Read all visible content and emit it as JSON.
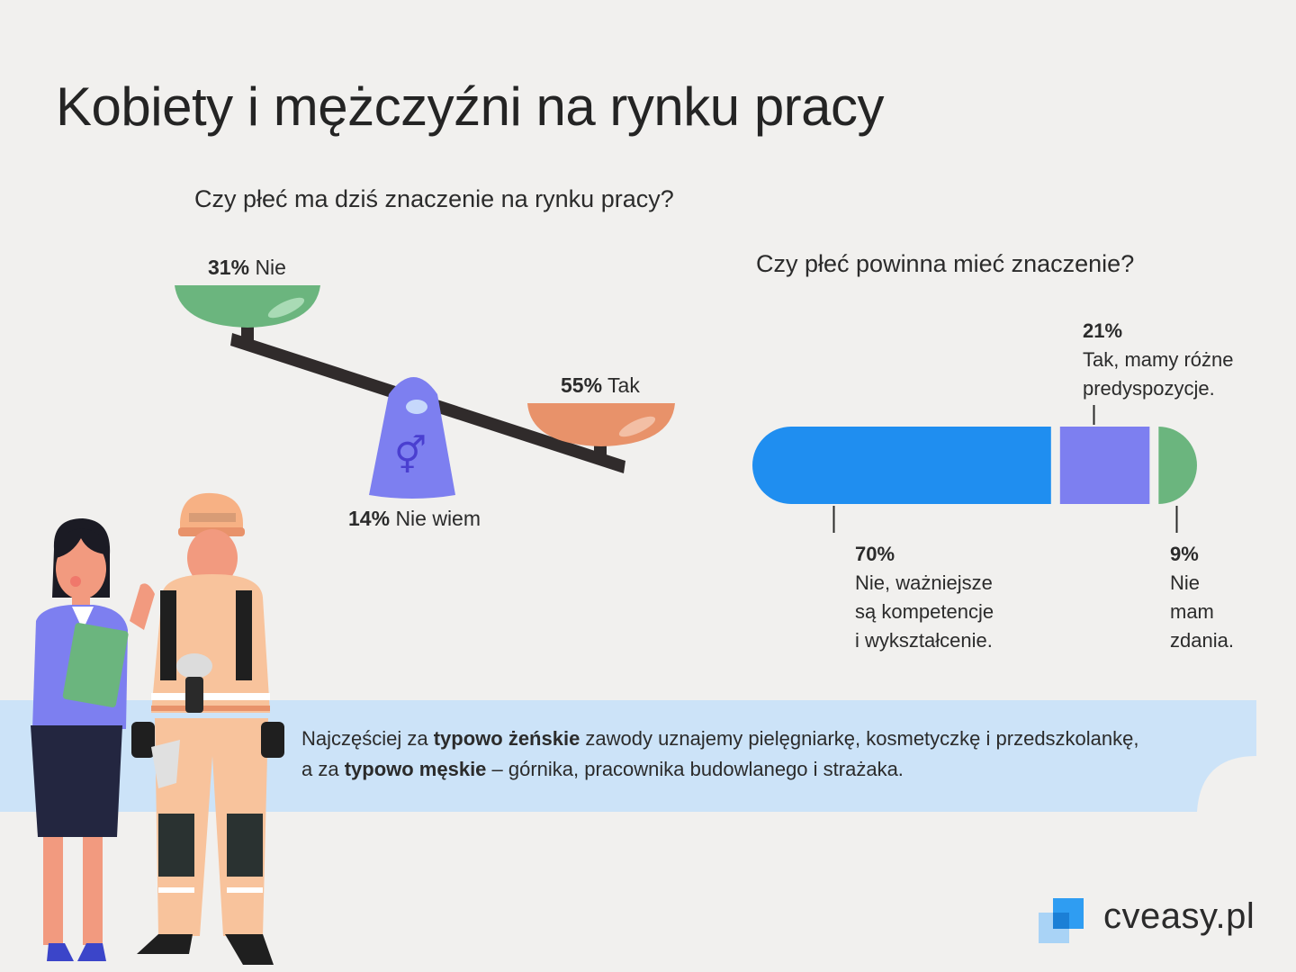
{
  "title": "Kobiety i mężczyźni na rynku pracy",
  "colors": {
    "background": "#f1f0ee",
    "green": "#6bb57e",
    "orange": "#e8926a",
    "purple": "#7d7ff0",
    "blue": "#1f8ef0",
    "banner": "#cce3f8",
    "logo": "#2f9df2"
  },
  "chart_data": [
    {
      "type": "scale",
      "title": "Czy płeć ma dziś znaczenie na rynku pracy?",
      "items": [
        {
          "pct": "31%",
          "label": "Nie",
          "value": 31,
          "color": "#6bb57e"
        },
        {
          "pct": "55%",
          "label": "Tak",
          "value": 55,
          "color": "#e8926a"
        },
        {
          "pct": "14%",
          "label": "Nie wiem",
          "value": 14,
          "color": "#7d7ff0"
        }
      ],
      "icon": "gender-symbols-icon"
    },
    {
      "type": "bar",
      "stacked": true,
      "title": "Czy płeć powinna mieć znaczenie?",
      "series": [
        {
          "pct": "70%",
          "label": "Nie, ważniejsze\nsą kompetencje\ni wykształcenie.",
          "value": 70,
          "color": "#1f8ef0"
        },
        {
          "pct": "21%",
          "label": "Tak, mamy różne\npredyspozycje.",
          "value": 21,
          "color": "#7d7ff0"
        },
        {
          "pct": "9%",
          "label": "Nie\nmam\nzdania.",
          "value": 9,
          "color": "#6bb57e"
        }
      ]
    }
  ],
  "banner": {
    "t1": "Najczęściej za ",
    "b1": "typowo żeńskie",
    "t2": " zawody uznajemy pielęgniarkę, kosmetyczkę i przedszkolankę,",
    "t3": "a za ",
    "b2": "typowo męskie",
    "t4": " – górnika, pracownika budowlanego i strażaka."
  },
  "logo": {
    "text": "cveasy.pl"
  }
}
